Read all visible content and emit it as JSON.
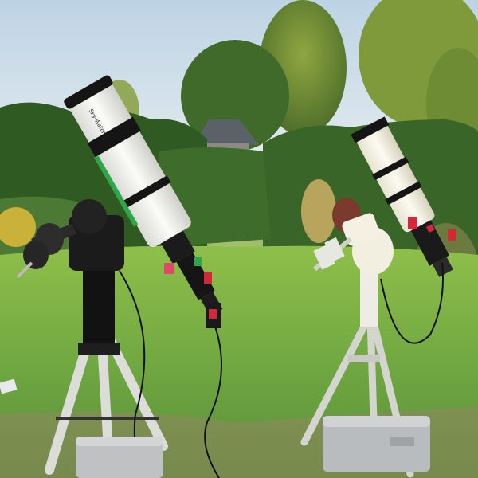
{
  "scene": {
    "description_label": "",
    "colors": {
      "sky_top": "#bdd3e4",
      "sky_bottom": "#e8eef0",
      "hedge_dark": "#2f5a22",
      "hedge_mid": "#4c7a34",
      "tree_sunlit": "#8fa641",
      "lawn_far": "#8fbf4a",
      "lawn_near": "#5f9a3a",
      "gravel": "#9c9069",
      "tube_white": "#f1f1ee",
      "tube_black": "#151515",
      "accent_red": "#d4283a",
      "accent_green": "#2fa64a",
      "tripod_silver": "#d8d8d4",
      "case_grey": "#b9bcbf"
    },
    "objects": {
      "left_telescope": "refractor-telescope-left",
      "right_telescope": "refractor-telescope-right",
      "left_mount": "equatorial-mount-black",
      "right_mount": "equatorial-mount-white",
      "left_tripod": "tripod-left",
      "right_tripod": "tripod-right",
      "case_left": "grey-case-left",
      "case_right": "grey-case-right"
    },
    "brand_label": "Sky-Watcher"
  }
}
